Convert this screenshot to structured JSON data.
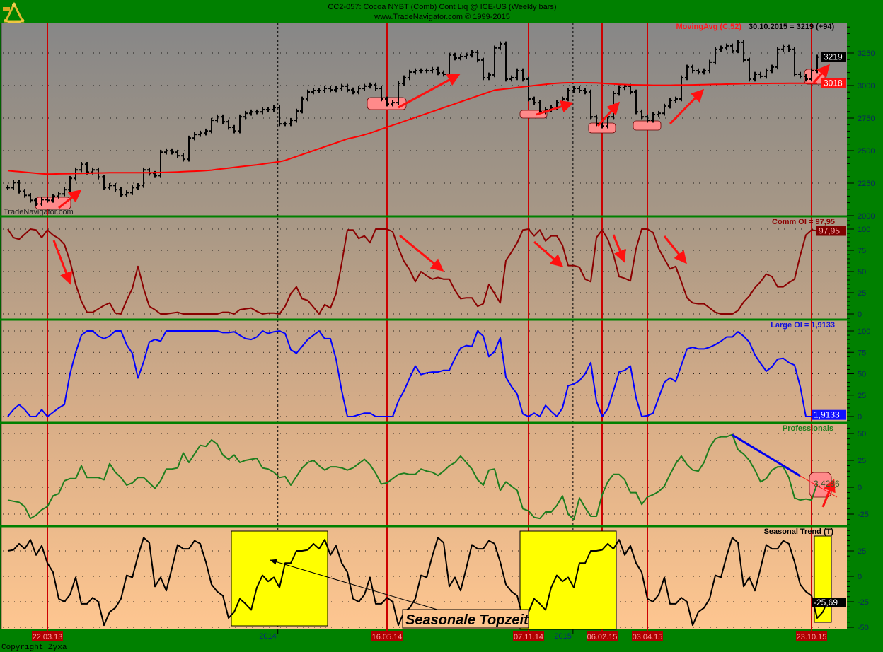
{
  "header": {
    "title": "CC2-057:  Cocoa NYBT (Comb) Cont Liq @ ICE-US  (Weekly bars)",
    "subtitle": "www.TradeNavigator.com © 1999-2015",
    "logo_icon": "sextant-icon"
  },
  "watermark": "TradeNavigator.com",
  "copyright": "Copyright Zyxa",
  "annotation_text": "Seasonale Topzeit",
  "time_axis": {
    "last_bar_date": "30.10.2015",
    "markers": [
      "22.03.13",
      "16.05.14",
      "07.11.14",
      "06.02.15",
      "03.04.15",
      "23.10.15"
    ],
    "year_labels": [
      {
        "label": "2014",
        "date": "01.01.14"
      },
      {
        "label": "2015",
        "date": "01.01.15"
      }
    ]
  },
  "colors": {
    "header_bg": "#008000",
    "price": "#000000",
    "moving_avg": "#ff0000",
    "comm_oi": "#8b0000",
    "large_oi": "#0000ff",
    "professionals": "#1e7e1e",
    "seasonal": "#000000",
    "marker_line": "#cc0000",
    "highlight_yellow": "#ffff00",
    "highlight_pink": "#ff8a8a"
  },
  "chart_data": [
    {
      "type": "ohlc-bar",
      "title": "MovingAvg (C,52)",
      "readout": "30.10.2015 = 3219 (+94)",
      "ylim": [
        2000,
        3400
      ],
      "yticks": [
        2000,
        2250,
        2500,
        2750,
        3000,
        3250
      ],
      "grid": true,
      "tags": [
        "3219",
        "3018"
      ],
      "series": [
        {
          "values": [
            2215,
            2254,
            2188,
            2156,
            2118,
            2090,
            2123,
            2118,
            2150,
            2167,
            2200,
            2287,
            2352,
            2395,
            2335,
            2352,
            2297,
            2215,
            2232,
            2200,
            2161,
            2177,
            2215,
            2232,
            2352,
            2325,
            2308,
            2488,
            2499,
            2488,
            2461,
            2434,
            2597,
            2624,
            2635,
            2651,
            2733,
            2760,
            2722,
            2679,
            2651,
            2760,
            2787,
            2798,
            2798,
            2815,
            2815,
            2831,
            2706,
            2706,
            2733,
            2804,
            2897,
            2951,
            2962,
            2962,
            2978,
            2967,
            2978,
            2995,
            2967,
            2951,
            2978,
            2995,
            3005,
            2978,
            2897,
            2858,
            2869,
            3016,
            3060,
            3103,
            3114,
            3114,
            3114,
            3125,
            3098,
            3087,
            3234,
            3212,
            3223,
            3234,
            3256,
            3196,
            3060,
            3082,
            3289,
            3321,
            3049,
            3060,
            3114,
            3049,
            2897,
            2869,
            2798,
            2815,
            2831,
            2869,
            2897,
            2962,
            2978,
            2962,
            2951,
            2760,
            2706,
            2689,
            2760,
            2940,
            2984,
            2995,
            2951,
            2798,
            2760,
            2733,
            2777,
            2787,
            2842,
            2886,
            2897,
            3060,
            3142,
            3114,
            3103,
            3114,
            3180,
            3278,
            3289,
            3305,
            3267,
            3332,
            3196,
            3049,
            3087,
            3071,
            3114,
            3142,
            3278,
            3299,
            3278,
            3087,
            3071,
            3049,
            3114,
            3219
          ]
        },
        {
          "name": "MovingAvg (C,52)",
          "values": [
            2346,
            2342,
            2338,
            2334,
            2330,
            2326,
            2322,
            2319,
            2320,
            2321,
            2322,
            2323,
            2324,
            2325,
            2326,
            2327,
            2328,
            2329,
            2330,
            2330,
            2330,
            2330,
            2330,
            2330,
            2330,
            2330,
            2331,
            2332,
            2333,
            2334,
            2336,
            2338,
            2340,
            2342,
            2344,
            2347,
            2350,
            2356,
            2361,
            2366,
            2371,
            2376,
            2381,
            2386,
            2391,
            2397,
            2403,
            2409,
            2415,
            2425,
            2440,
            2455,
            2470,
            2485,
            2500,
            2515,
            2530,
            2545,
            2560,
            2575,
            2590,
            2600,
            2610,
            2622,
            2635,
            2650,
            2665,
            2680,
            2695,
            2710,
            2725,
            2740,
            2755,
            2770,
            2785,
            2800,
            2815,
            2830,
            2845,
            2860,
            2875,
            2890,
            2905,
            2920,
            2935,
            2950,
            2965,
            2970,
            2975,
            2980,
            2985,
            2990,
            2995,
            3000,
            3005,
            3010,
            3014,
            3018,
            3020,
            3022,
            3022,
            3022,
            3022,
            3021,
            3020,
            3018,
            3015,
            3012,
            3010,
            3008,
            3006,
            3005,
            3004,
            3003,
            3002,
            3002,
            3002,
            3002,
            3003,
            3003,
            3004,
            3005,
            3006,
            3007,
            3008,
            3009,
            3010,
            3011,
            3012,
            3013,
            3014,
            3015,
            3015,
            3016,
            3016,
            3017,
            3017,
            3017,
            3018,
            3018,
            3018,
            3018,
            3018,
            3018
          ]
        }
      ]
    },
    {
      "type": "line",
      "title": "Comm OI = 97,95",
      "ylim": [
        0,
        100
      ],
      "yticks": [
        0,
        25,
        50,
        75,
        100
      ],
      "grid": true,
      "tags": [
        "97,95"
      ],
      "series": [
        {
          "name": "Comm OI",
          "values": [
            100,
            90,
            88,
            94,
            100,
            99,
            90,
            99,
            93,
            89,
            82,
            62,
            35,
            15,
            2,
            2,
            6,
            10,
            13,
            1,
            0,
            16,
            30,
            56,
            30,
            9,
            5,
            0,
            0,
            1,
            2,
            0,
            0,
            0,
            0,
            0,
            0,
            0,
            2,
            2,
            0,
            5,
            6,
            7,
            3,
            0,
            1,
            1,
            0,
            9,
            24,
            32,
            18,
            16,
            8,
            0,
            11,
            7,
            24,
            60,
            99,
            99,
            89,
            92,
            84,
            100,
            100,
            100,
            97,
            78,
            62,
            52,
            38,
            50,
            45,
            41,
            43,
            41,
            41,
            28,
            18,
            19,
            19,
            9,
            12,
            35,
            24,
            13,
            63,
            73,
            84,
            99,
            100,
            92,
            99,
            86,
            92,
            92,
            81,
            57,
            57,
            55,
            41,
            38,
            90,
            99,
            88,
            70,
            44,
            42,
            39,
            77,
            100,
            100,
            96,
            77,
            65,
            53,
            56,
            38,
            19,
            13,
            12,
            12,
            7,
            2,
            0,
            0,
            0,
            4,
            14,
            21,
            31,
            38,
            47,
            44,
            32,
            32,
            37,
            41,
            69,
            93,
            99,
            97.95
          ]
        }
      ]
    },
    {
      "type": "line",
      "title": "Large OI = 1,9133",
      "ylim": [
        0,
        100
      ],
      "yticks": [
        0,
        25,
        50,
        75,
        100
      ],
      "grid": true,
      "tags": [
        "1,9133"
      ],
      "series": [
        {
          "name": "Large OI",
          "values": [
            0,
            8,
            14,
            8,
            0,
            0,
            8,
            0,
            5,
            10,
            14,
            50,
            75,
            95,
            100,
            100,
            94,
            91,
            94,
            100,
            100,
            84,
            74,
            45,
            64,
            87,
            90,
            88,
            100,
            100,
            100,
            100,
            100,
            100,
            100,
            100,
            100,
            100,
            98,
            98,
            99,
            95,
            91,
            90,
            93,
            100,
            97,
            99,
            100,
            97,
            78,
            74,
            82,
            90,
            95,
            100,
            91,
            91,
            67,
            30,
            0,
            0,
            2,
            4,
            4,
            0,
            0,
            0,
            0,
            18,
            30,
            45,
            59,
            49,
            51,
            52,
            52,
            54,
            54,
            68,
            80,
            83,
            82,
            100,
            94,
            70,
            76,
            92,
            46,
            35,
            26,
            3,
            0,
            4,
            0,
            13,
            6,
            0,
            10,
            36,
            38,
            42,
            50,
            63,
            18,
            0,
            9,
            30,
            52,
            54,
            59,
            22,
            0,
            1,
            4,
            22,
            40,
            45,
            41,
            60,
            79,
            81,
            79,
            79,
            81,
            84,
            88,
            93,
            93,
            99,
            94,
            87,
            72,
            62,
            53,
            58,
            67,
            68,
            63,
            60,
            35,
            0,
            0,
            1.9133
          ]
        }
      ]
    },
    {
      "type": "line",
      "title": "Professionals",
      "ylim": [
        -35,
        60
      ],
      "yticks": [
        -25,
        0,
        25,
        50
      ],
      "grid": true,
      "tags": [
        "3,4286"
      ],
      "series": [
        {
          "name": "Professionals",
          "values": [
            -12,
            -13,
            -14,
            -18,
            -29,
            -26,
            -21,
            -18,
            -8,
            -6,
            6,
            8,
            8,
            20,
            9,
            9,
            9,
            7,
            22,
            14,
            9,
            2,
            4,
            9,
            9,
            4,
            -1,
            6,
            17,
            17,
            18,
            32,
            23,
            31,
            39,
            38,
            44,
            40,
            30,
            26,
            30,
            23,
            25,
            26,
            27,
            18,
            17,
            14,
            9,
            10,
            2,
            10,
            18,
            23,
            25,
            20,
            16,
            19,
            19,
            18,
            16,
            18,
            22,
            26,
            21,
            13,
            3,
            4,
            8,
            12,
            13,
            12,
            12,
            17,
            15,
            14,
            11,
            15,
            20,
            23,
            29,
            23,
            17,
            7,
            2,
            16,
            17,
            -3,
            5,
            1,
            -3,
            -20,
            -22,
            -28,
            -29,
            -23,
            -23,
            -17,
            -8,
            -25,
            -30,
            -10,
            -19,
            -27,
            -27,
            -7,
            5,
            12,
            12,
            7,
            -5,
            -5,
            -16,
            -9,
            -7,
            -4,
            1,
            12,
            22,
            29,
            21,
            16,
            15,
            23,
            37,
            45,
            47,
            47,
            49,
            35,
            31,
            25,
            16,
            5,
            8,
            16,
            19,
            19,
            9,
            -10,
            -12,
            -11,
            -12,
            3.4286
          ]
        }
      ]
    },
    {
      "type": "line",
      "title": "Seasonal Trend (T)",
      "ylim": [
        -52,
        42
      ],
      "yticks": [
        -50,
        -25,
        0,
        25
      ],
      "grid": true,
      "tags": [
        "-25,69"
      ],
      "series": [
        {
          "name": "Seasonal Trend (T)",
          "values": [
            25,
            26,
            32,
            27,
            36,
            21,
            30,
            13,
            4,
            -22,
            -25,
            -18,
            -1,
            -27,
            -27,
            -21,
            -25,
            -48,
            -35,
            -31,
            -22,
            1,
            -1,
            20,
            38,
            33,
            -10,
            -1,
            -14,
            8,
            31,
            27,
            27,
            35,
            32,
            14,
            -8,
            -15,
            -19,
            -41,
            -35,
            -22,
            -27,
            -33,
            -11,
            1,
            -5,
            -1,
            -11,
            13,
            13,
            25,
            25,
            26,
            32,
            27,
            36,
            21,
            30,
            13,
            4,
            -22,
            -25,
            -18,
            -1,
            -27,
            -27,
            -21,
            -25,
            -48,
            -35,
            -31,
            -22,
            1,
            -1,
            20,
            38,
            33,
            -10,
            -1,
            -14,
            8,
            31,
            27,
            27,
            35,
            32,
            14,
            -8,
            -15,
            -19,
            -41,
            -35,
            -22,
            -27,
            -33,
            -11,
            1,
            -5,
            -1,
            -11,
            13,
            13,
            25,
            25,
            26,
            32,
            27,
            36,
            21,
            30,
            13,
            4,
            -22,
            -25,
            -18,
            -1,
            -27,
            -27,
            -21,
            -25,
            -48,
            -35,
            -31,
            -22,
            1,
            -1,
            20,
            38,
            33,
            -10,
            -1,
            -14,
            8,
            31,
            27,
            27,
            35,
            32,
            14,
            -8,
            -15,
            -19,
            -41,
            -35,
            -22,
            -25.69
          ]
        }
      ]
    }
  ]
}
